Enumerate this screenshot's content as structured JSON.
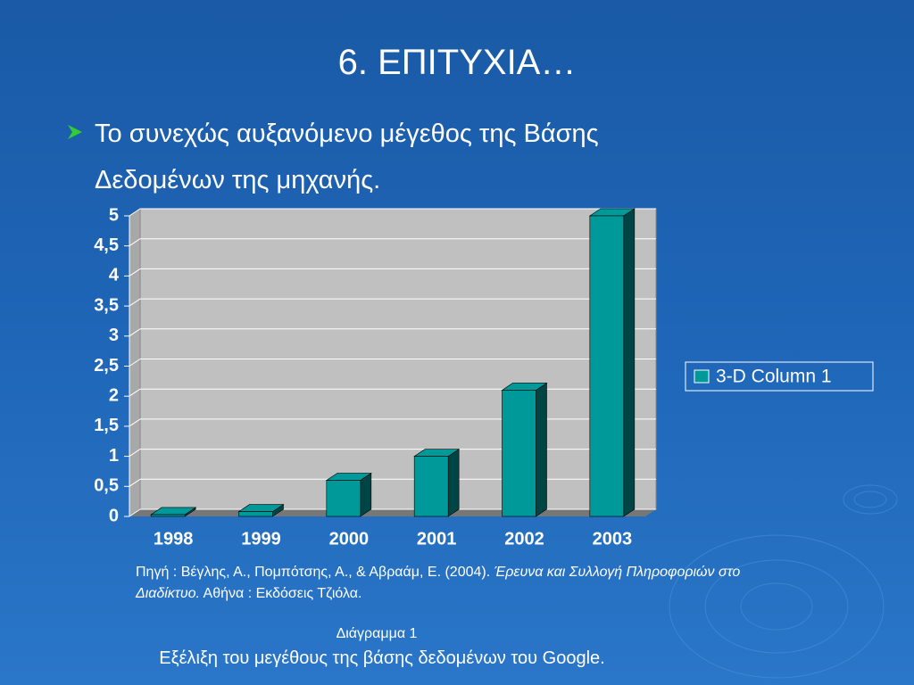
{
  "slide": {
    "title": "6. ΕΠΙΤΥΧΙΑ…",
    "bullet": "Το συνεχώς αυξανόμενο μέγεθος της Βάσης Δεδομένων της μηχανής.",
    "source": {
      "prefix": "Πηγή : Βέγλης, Α., Πομπότσης, Α., &  Αβραάμ, Ε. (2004).",
      "title": "Έρευνα και Συλλογή Πληροφοριών στο Διαδίκτυο.",
      "suffix": "Αθήνα : Εκδόσεις Τζιόλα."
    },
    "caption_label": "Διάγραμμα 1",
    "caption": "Εξέλιξη του μεγέθους της βάσης δεδομένων του Google."
  },
  "chart_data": {
    "type": "bar3d",
    "categories": [
      "1998",
      "1999",
      "2000",
      "2001",
      "2002",
      "2003"
    ],
    "series": [
      {
        "name": "3-D Column 1",
        "color": "#009999",
        "values": [
          0.03,
          0.08,
          0.6,
          1.0,
          2.1,
          5.0
        ]
      }
    ],
    "ylim": [
      0,
      5
    ],
    "yticks": [
      0,
      {
        "value": 0.5,
        "label": "0,5"
      },
      1,
      {
        "value": 1.5,
        "label": "1,5"
      },
      2,
      {
        "value": 2.5,
        "label": "2,5"
      },
      3,
      {
        "value": 3.5,
        "label": "3,5"
      },
      4,
      {
        "value": 4.5,
        "label": "4,5"
      },
      5
    ],
    "grid": true,
    "legend": "right"
  }
}
